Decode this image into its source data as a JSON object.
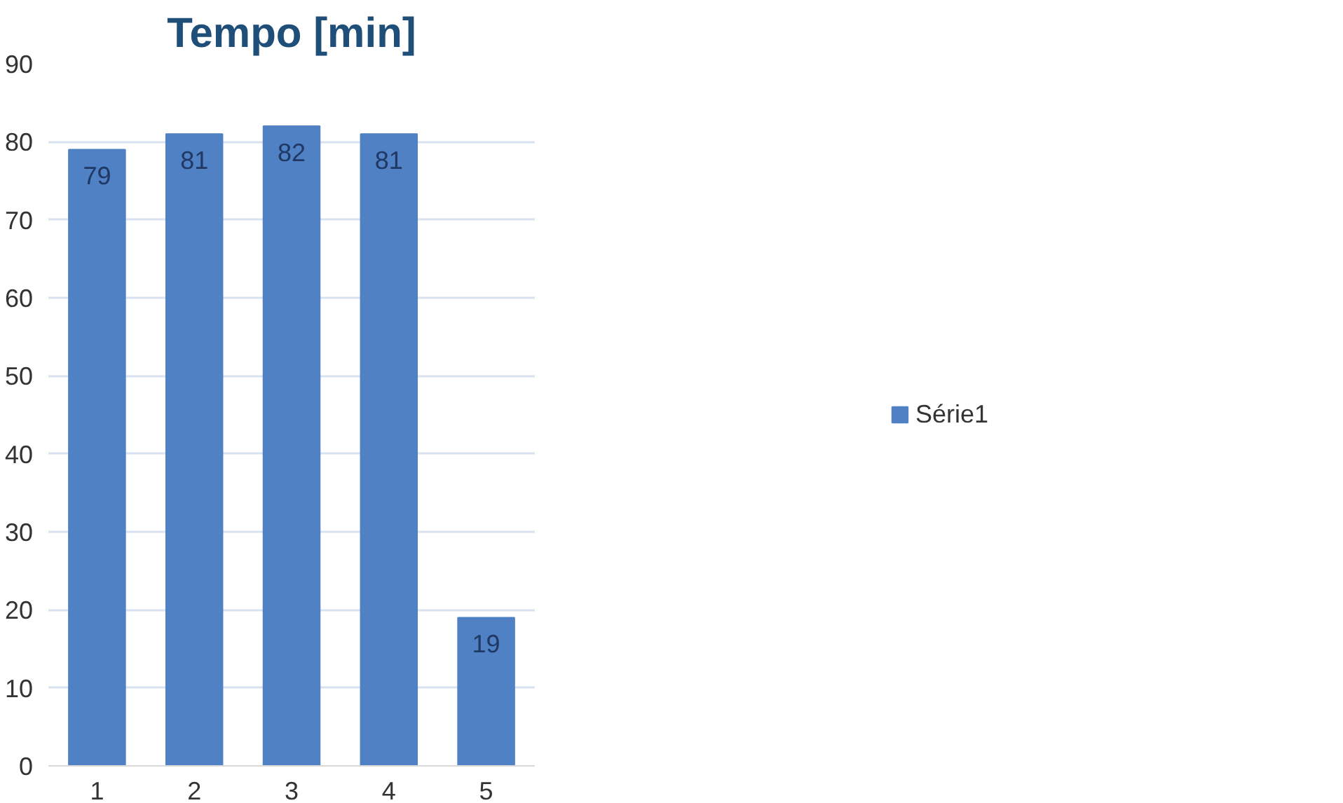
{
  "chart_data": {
    "type": "bar",
    "title": "Tempo [min]",
    "categories": [
      "1",
      "2",
      "3",
      "4",
      "5"
    ],
    "series": [
      {
        "name": "Série1",
        "color": "#4f81c4",
        "values": [
          79,
          81,
          82,
          81,
          19
        ]
      }
    ],
    "ylim": [
      0,
      90
    ],
    "yticks": [
      0,
      10,
      20,
      30,
      40,
      50,
      60,
      70,
      80,
      90
    ],
    "grid": "y",
    "legend": "right",
    "data_labels": true
  }
}
